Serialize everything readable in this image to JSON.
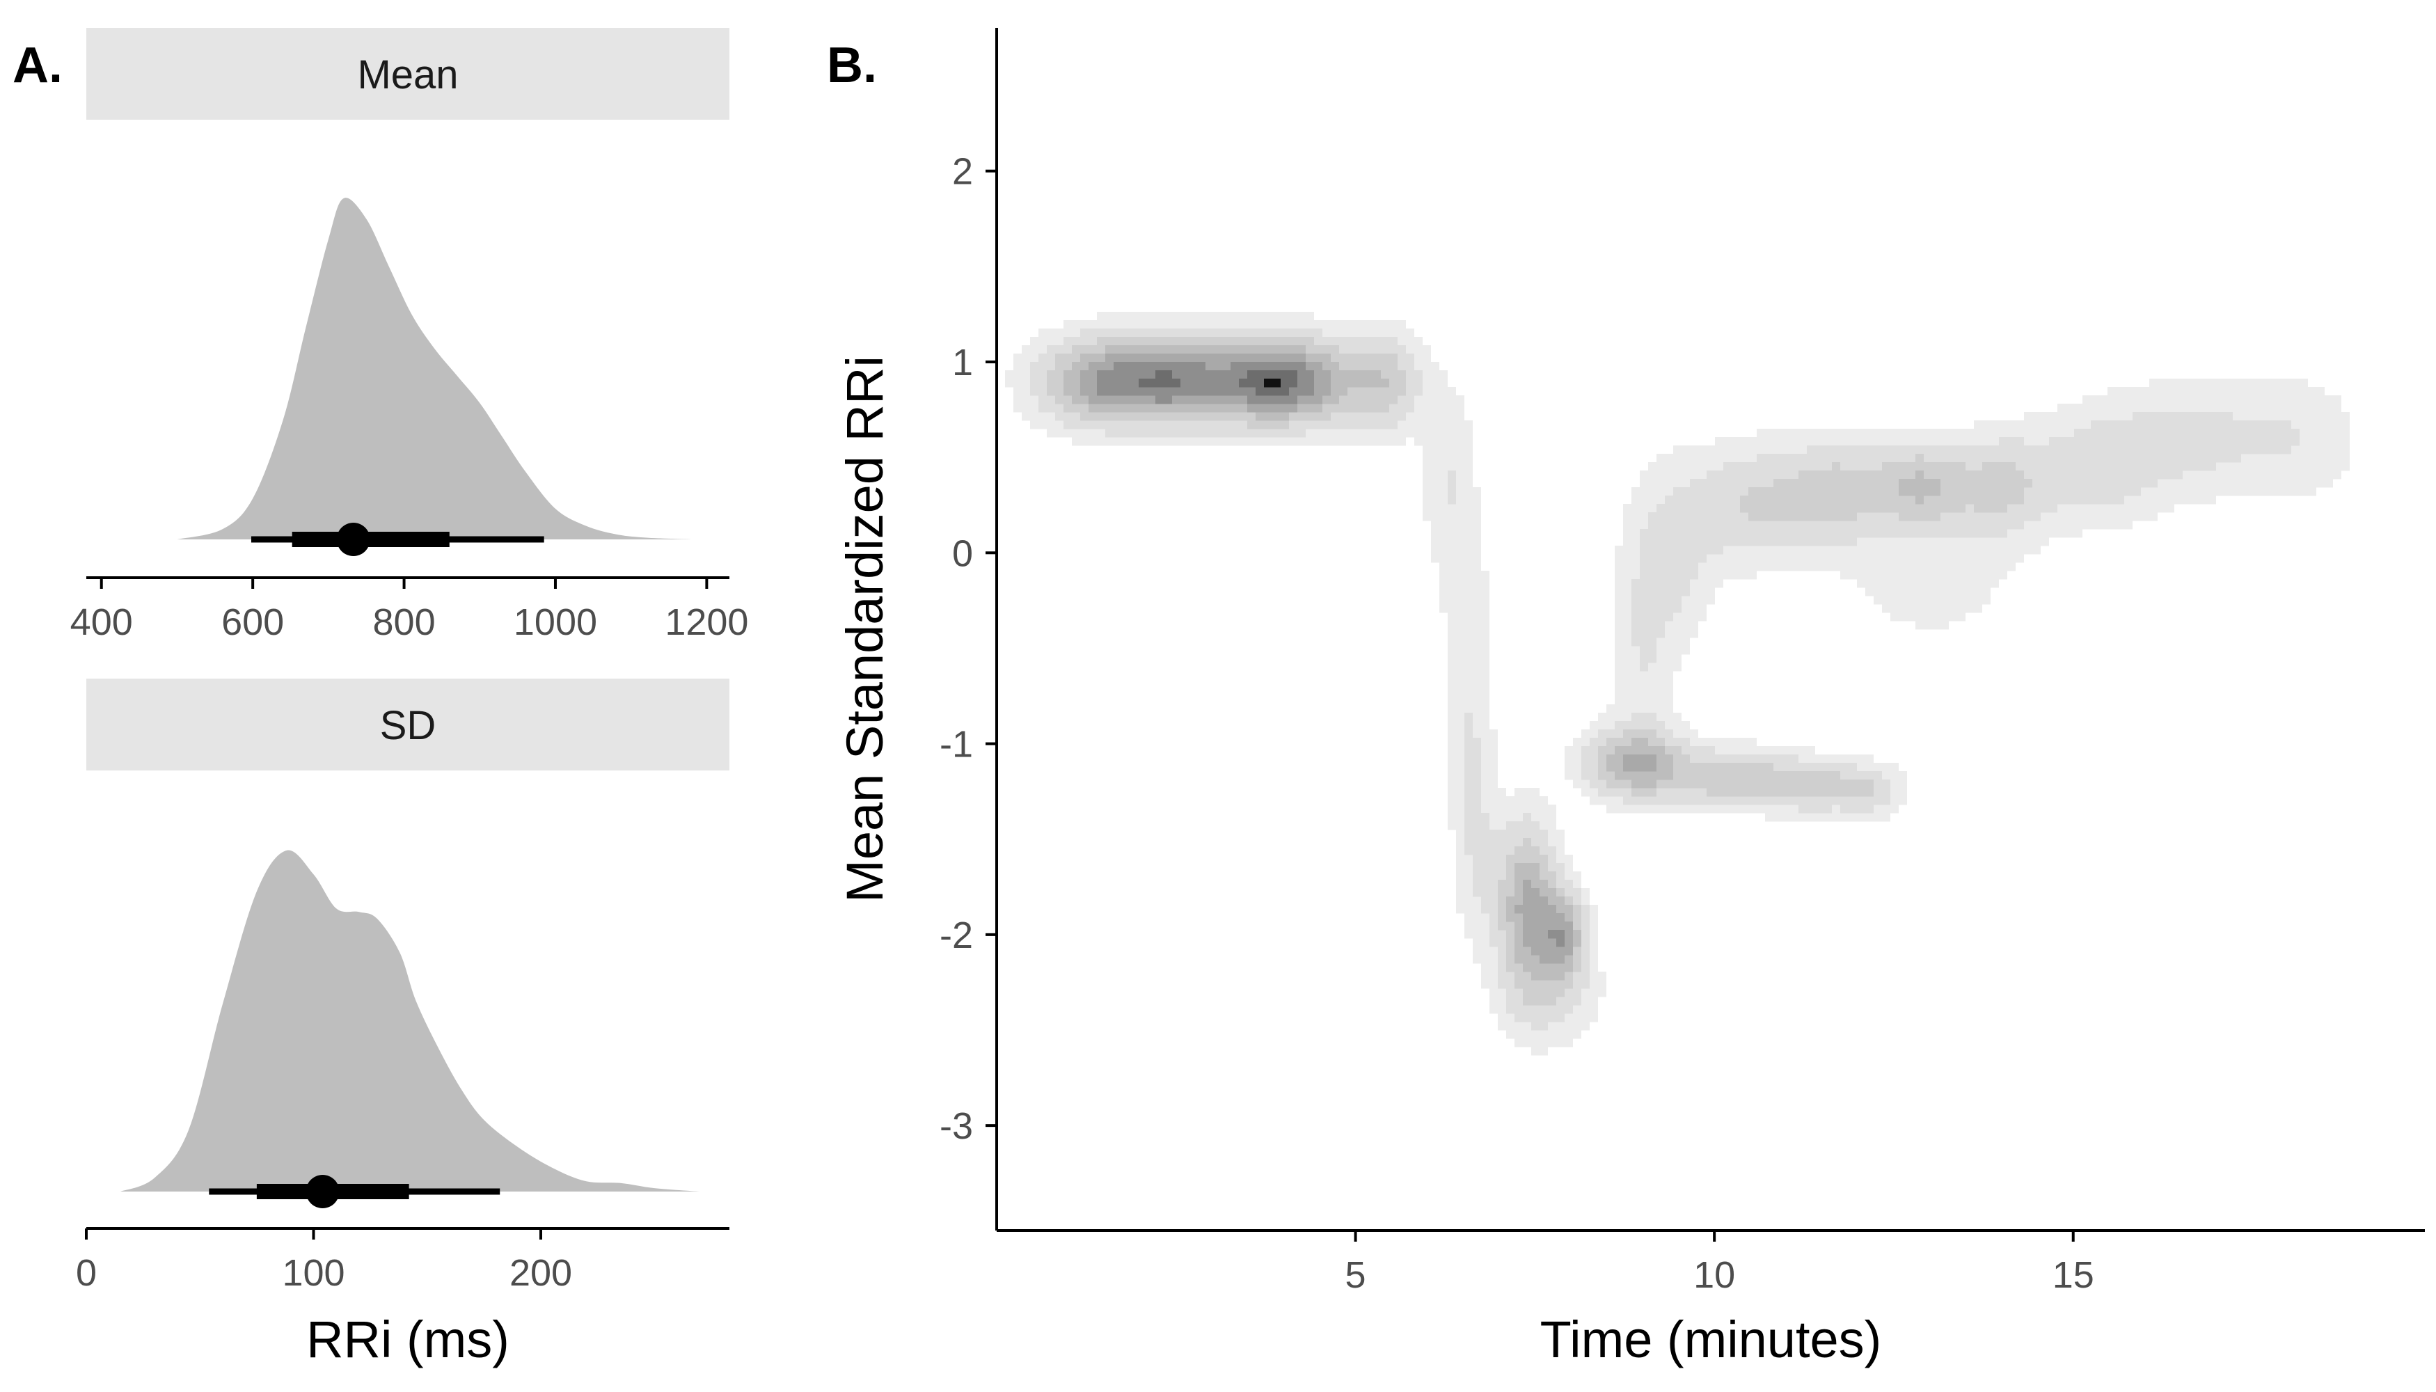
{
  "chart_data": [
    {
      "panel_label": "A.",
      "type": "area",
      "facet": "Mean",
      "xlabel": "",
      "xticks": [
        400,
        600,
        800,
        1000,
        1200
      ],
      "xlim": [
        380,
        1230
      ],
      "density": {
        "x": [
          500,
          560,
          600,
          640,
          670,
          700,
          720,
          750,
          780,
          810,
          840,
          870,
          900,
          930,
          960,
          1000,
          1040,
          1080,
          1120,
          1180
        ],
        "y": [
          0.0,
          0.03,
          0.12,
          0.35,
          0.62,
          0.88,
          1.0,
          0.94,
          0.8,
          0.66,
          0.56,
          0.48,
          0.4,
          0.3,
          0.2,
          0.09,
          0.04,
          0.015,
          0.005,
          0.0
        ]
      },
      "point_estimate": 733,
      "interval_inner": [
        652,
        860
      ],
      "interval_outer": [
        598,
        985
      ]
    },
    {
      "panel_label": "",
      "type": "area",
      "facet": "SD",
      "xlabel": "RRi (ms)",
      "xticks": [
        0,
        100,
        200
      ],
      "xlim": [
        0,
        283
      ],
      "density": {
        "x": [
          15,
          30,
          45,
          60,
          75,
          88,
          100,
          110,
          120,
          128,
          138,
          145,
          155,
          165,
          175,
          190,
          205,
          220,
          235,
          250,
          270
        ],
        "y": [
          0.0,
          0.04,
          0.18,
          0.55,
          0.88,
          1.0,
          0.93,
          0.83,
          0.82,
          0.8,
          0.7,
          0.56,
          0.42,
          0.3,
          0.21,
          0.13,
          0.07,
          0.03,
          0.025,
          0.01,
          0.0
        ]
      },
      "point_estimate": 104,
      "interval_inner": [
        75,
        142
      ],
      "interval_outer": [
        54,
        182
      ]
    },
    {
      "panel_label": "B.",
      "type": "heatmap",
      "xlabel": "Time (minutes)",
      "ylabel": "Mean Standardized RRi",
      "xticks": [
        5,
        10,
        15
      ],
      "yticks": [
        -3,
        -2,
        -1,
        0,
        1,
        2
      ],
      "xlim": [
        0,
        19.9
      ],
      "ylim": [
        -3.55,
        2.75
      ],
      "grid": false,
      "contour_levels": 7,
      "density_centers": [
        {
          "x": 1.5,
          "y": 0.9,
          "sx": 0.6,
          "sy": 0.15,
          "w": 1.0
        },
        {
          "x": 2.6,
          "y": 0.9,
          "sx": 0.55,
          "sy": 0.15,
          "w": 1.0
        },
        {
          "x": 3.6,
          "y": 0.9,
          "sx": 0.45,
          "sy": 0.15,
          "w": 0.8
        },
        {
          "x": 4.3,
          "y": 0.9,
          "sx": 0.5,
          "sy": 0.15,
          "w": 0.95
        },
        {
          "x": 5.4,
          "y": 0.9,
          "sx": 0.35,
          "sy": 0.17,
          "w": 0.55
        },
        {
          "x": 6.3,
          "y": 0.4,
          "sx": 0.25,
          "sy": 0.32,
          "w": 0.22
        },
        {
          "x": 6.55,
          "y": -0.3,
          "sx": 0.22,
          "sy": 0.32,
          "w": 0.18
        },
        {
          "x": 6.6,
          "y": -1.0,
          "sx": 0.22,
          "sy": 0.3,
          "w": 0.2
        },
        {
          "x": 6.7,
          "y": -1.6,
          "sx": 0.22,
          "sy": 0.3,
          "w": 0.22
        },
        {
          "x": 7.4,
          "y": -1.85,
          "sx": 0.28,
          "sy": 0.28,
          "w": 0.9
        },
        {
          "x": 7.9,
          "y": -2.0,
          "sx": 0.22,
          "sy": 0.15,
          "w": 0.8
        },
        {
          "x": 7.7,
          "y": -2.3,
          "sx": 0.45,
          "sy": 0.18,
          "w": 0.3
        },
        {
          "x": 8.9,
          "y": -1.1,
          "sx": 0.45,
          "sy": 0.12,
          "w": 0.85
        },
        {
          "x": 10.2,
          "y": -1.18,
          "sx": 0.6,
          "sy": 0.1,
          "w": 0.55
        },
        {
          "x": 11.4,
          "y": -1.22,
          "sx": 0.5,
          "sy": 0.09,
          "w": 0.5
        },
        {
          "x": 12.2,
          "y": -1.25,
          "sx": 0.3,
          "sy": 0.09,
          "w": 0.3
        },
        {
          "x": 9.0,
          "y": -0.55,
          "sx": 0.3,
          "sy": 0.35,
          "w": 0.2
        },
        {
          "x": 9.4,
          "y": 0.0,
          "sx": 0.4,
          "sy": 0.3,
          "w": 0.3
        },
        {
          "x": 10.5,
          "y": 0.25,
          "sx": 0.55,
          "sy": 0.2,
          "w": 0.4
        },
        {
          "x": 11.7,
          "y": 0.32,
          "sx": 0.55,
          "sy": 0.18,
          "w": 0.5
        },
        {
          "x": 12.9,
          "y": 0.35,
          "sx": 0.45,
          "sy": 0.15,
          "w": 0.6
        },
        {
          "x": 14.0,
          "y": 0.35,
          "sx": 0.45,
          "sy": 0.18,
          "w": 0.45
        },
        {
          "x": 15.3,
          "y": 0.45,
          "sx": 0.6,
          "sy": 0.2,
          "w": 0.33
        },
        {
          "x": 16.6,
          "y": 0.6,
          "sx": 0.7,
          "sy": 0.2,
          "w": 0.28
        },
        {
          "x": 18.1,
          "y": 0.6,
          "sx": 0.6,
          "sy": 0.22,
          "w": 0.2
        },
        {
          "x": 13.0,
          "y": -0.15,
          "sx": 0.9,
          "sy": 0.25,
          "w": 0.13
        }
      ]
    }
  ],
  "colors": {
    "density_fill": "#bebebe",
    "strip_fill": "#e5e5e5",
    "interval": "#000000",
    "axis": "#000000",
    "contour_shades": [
      "#ececec",
      "#dedede",
      "#cfcfcf",
      "#bdbdbd",
      "#a9a9a9",
      "#8e8e8e",
      "#6d6d6d",
      "#111111"
    ]
  }
}
